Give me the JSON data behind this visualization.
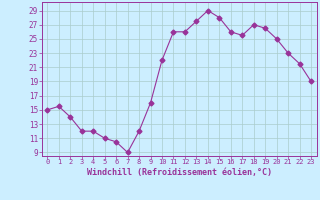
{
  "x": [
    0,
    1,
    2,
    3,
    4,
    5,
    6,
    7,
    8,
    9,
    10,
    11,
    12,
    13,
    14,
    15,
    16,
    17,
    18,
    19,
    20,
    21,
    22,
    23
  ],
  "y": [
    15,
    15.5,
    14,
    12,
    12,
    11,
    10.5,
    9,
    12,
    16,
    22,
    26,
    26,
    27.5,
    29,
    28,
    26,
    25.5,
    27,
    26.5,
    25,
    23,
    21.5,
    19
  ],
  "line_color": "#993399",
  "marker": "D",
  "marker_size": 2.5,
  "bg_color": "#cceeff",
  "grid_color": "#aacccc",
  "xlabel": "Windchill (Refroidissement éolien,°C)",
  "tick_color": "#993399",
  "yticks": [
    9,
    11,
    13,
    15,
    17,
    19,
    21,
    23,
    25,
    27,
    29
  ],
  "ylim": [
    8.5,
    30.2
  ],
  "xlim": [
    -0.5,
    23.5
  ],
  "figsize": [
    3.2,
    2.0
  ],
  "dpi": 100
}
